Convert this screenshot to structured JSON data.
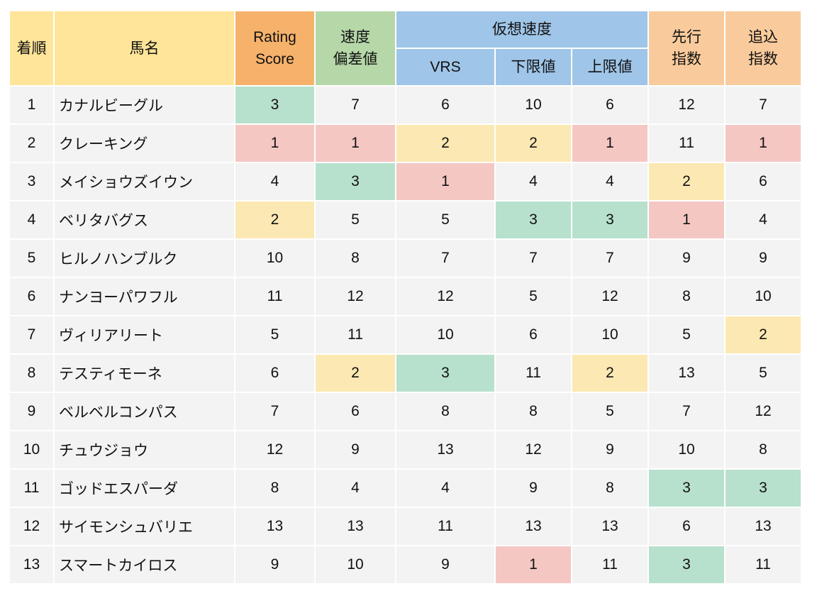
{
  "headers": {
    "rank": "着順",
    "name": "馬名",
    "rating": "Rating\nScore",
    "speed": "速度\n偏差値",
    "virtual": "仮想速度",
    "vrs": "VRS",
    "lower": "下限値",
    "upper": "上限値",
    "senko": "先行\n指数",
    "oikomi": "追込\n指数"
  },
  "colors": {
    "rank1": "#f4c7c3",
    "rank2": "#fce8b2",
    "rank3": "#b7e1cd",
    "cell": "#f3f3f3"
  },
  "rows": [
    {
      "rank": "1",
      "name": "カナルビーグル",
      "values": [
        3,
        7,
        6,
        10,
        6,
        12,
        7
      ]
    },
    {
      "rank": "2",
      "name": "クレーキング",
      "values": [
        1,
        1,
        2,
        2,
        1,
        11,
        1
      ]
    },
    {
      "rank": "3",
      "name": "メイショウズイウン",
      "values": [
        4,
        3,
        1,
        4,
        4,
        2,
        6
      ]
    },
    {
      "rank": "4",
      "name": "ベリタバグス",
      "values": [
        2,
        5,
        5,
        3,
        3,
        1,
        4
      ]
    },
    {
      "rank": "5",
      "name": "ヒルノハンブルク",
      "values": [
        10,
        8,
        7,
        7,
        7,
        9,
        9
      ]
    },
    {
      "rank": "6",
      "name": "ナンヨーパワフル",
      "values": [
        11,
        12,
        12,
        5,
        12,
        8,
        10
      ]
    },
    {
      "rank": "7",
      "name": "ヴィリアリート",
      "values": [
        5,
        11,
        10,
        6,
        10,
        5,
        2
      ]
    },
    {
      "rank": "8",
      "name": "テスティモーネ",
      "values": [
        6,
        2,
        3,
        11,
        2,
        13,
        5
      ]
    },
    {
      "rank": "9",
      "name": "ベルベルコンパス",
      "values": [
        7,
        6,
        8,
        8,
        5,
        7,
        12
      ]
    },
    {
      "rank": "10",
      "name": "チュウジョウ",
      "values": [
        12,
        9,
        13,
        12,
        9,
        10,
        8
      ]
    },
    {
      "rank": "11",
      "name": "ゴッドエスパーダ",
      "values": [
        8,
        4,
        4,
        9,
        8,
        3,
        3
      ]
    },
    {
      "rank": "12",
      "name": "サイモンシュバリエ",
      "values": [
        13,
        13,
        11,
        13,
        13,
        6,
        13
      ]
    },
    {
      "rank": "13",
      "name": "スマートカイロス",
      "values": [
        9,
        10,
        9,
        1,
        11,
        3,
        11
      ]
    }
  ]
}
